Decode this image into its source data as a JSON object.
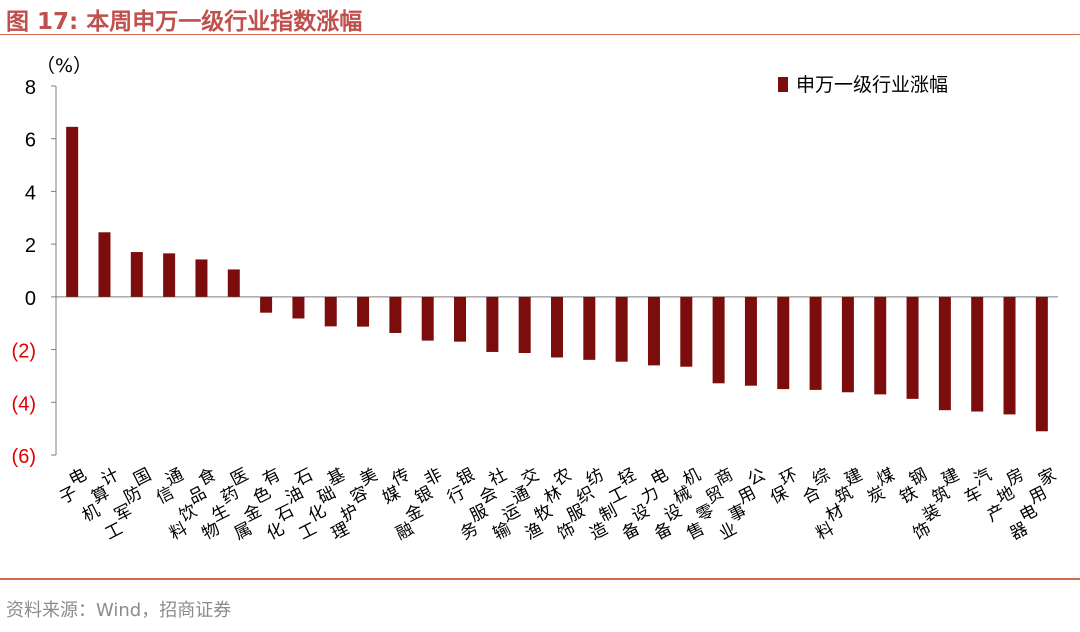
{
  "header": {
    "title": "图 17:  本周申万一级行业指数涨幅"
  },
  "footer": {
    "source": "资料来源：Wind，招商证券"
  },
  "colors": {
    "bar": "#7b0d0d",
    "negative_tick": "#e00000",
    "accent": "#c0504d"
  },
  "chart_data": {
    "type": "bar",
    "title": "",
    "xlabel": "",
    "ylabel": "（%）",
    "ylim": [
      -6,
      8
    ],
    "yticks": [
      8,
      6,
      4,
      2,
      0,
      -2,
      -4,
      -6
    ],
    "ytick_labels": [
      "8",
      "6",
      "4",
      "2",
      "0",
      "(2)",
      "(4)",
      "(6)"
    ],
    "legend": {
      "position": "top-right"
    },
    "categories": [
      "电子",
      "计算机",
      "国防军工",
      "通信",
      "食品饮料",
      "医药生物",
      "有色金属",
      "石油石化",
      "基础化工",
      "美容护理",
      "传媒",
      "非银金融",
      "银行",
      "社会服务",
      "交通运输",
      "农林牧渔",
      "纺织服饰",
      "轻工制造",
      "电力设备",
      "机械设备",
      "商贸零售",
      "公用事业",
      "环保",
      "综合",
      "建筑材料",
      "煤炭",
      "钢铁",
      "建筑装饰",
      "汽车",
      "房地产",
      "家用电器"
    ],
    "series": [
      {
        "name": "申万一级行业涨幅",
        "values": [
          6.45,
          2.45,
          1.7,
          1.65,
          1.42,
          1.04,
          -0.6,
          -0.82,
          -1.12,
          -1.13,
          -1.37,
          -1.66,
          -1.7,
          -2.09,
          -2.13,
          -2.3,
          -2.39,
          -2.46,
          -2.6,
          -2.65,
          -3.28,
          -3.37,
          -3.5,
          -3.53,
          -3.62,
          -3.7,
          -3.87,
          -4.3,
          -4.35,
          -4.46,
          -5.1
        ]
      }
    ]
  }
}
